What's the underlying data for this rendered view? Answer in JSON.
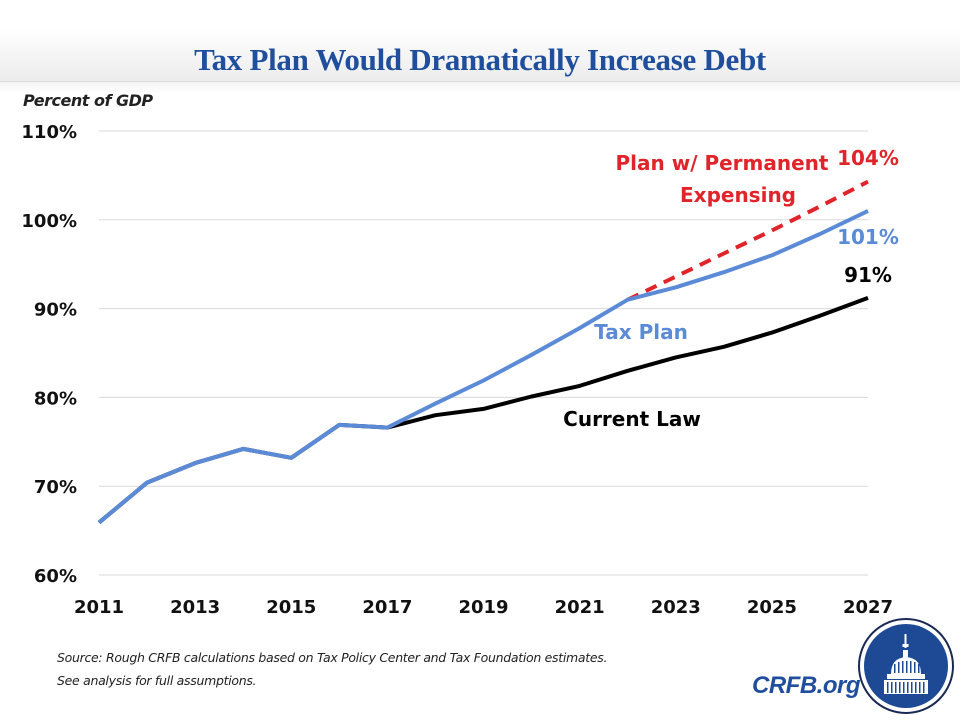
{
  "chart_data": {
    "type": "line",
    "title": "Tax Plan Would Dramatically Increase Debt",
    "ylabel": "Percent of GDP",
    "xlabel": "",
    "x": [
      2011,
      2012,
      2013,
      2014,
      2015,
      2016,
      2017,
      2018,
      2019,
      2020,
      2021,
      2022,
      2023,
      2024,
      2025,
      2026,
      2027
    ],
    "xlim": [
      2011,
      2027
    ],
    "ylim": [
      60,
      110
    ],
    "x_ticks": [
      "2011",
      "2013",
      "2015",
      "2017",
      "2019",
      "2021",
      "2023",
      "2025",
      "2027"
    ],
    "y_ticks": [
      "60%",
      "70%",
      "80%",
      "90%",
      "100%",
      "110%"
    ],
    "y_tick_values": [
      60,
      70,
      80,
      90,
      100,
      110
    ],
    "grid": "horizontal",
    "series": [
      {
        "name": "Current Law",
        "color": "#000000",
        "style": "solid",
        "x": [
          2011,
          2012,
          2013,
          2014,
          2015,
          2016,
          2017,
          2018,
          2019,
          2020,
          2021,
          2022,
          2023,
          2024,
          2025,
          2026,
          2027
        ],
        "values": [
          65.9,
          70.4,
          72.6,
          74.2,
          73.2,
          76.9,
          76.6,
          78.0,
          78.7,
          80.1,
          81.3,
          83.0,
          84.5,
          85.7,
          87.3,
          89.2,
          91.2
        ]
      },
      {
        "name": "Plan w/ Permanent Expensing",
        "color": "#e0242a",
        "style": "dashed",
        "x": [
          2022,
          2023,
          2024,
          2025,
          2026,
          2027
        ],
        "values": [
          91.0,
          93.6,
          96.2,
          98.8,
          101.5,
          104.3
        ]
      },
      {
        "name": "Tax Plan",
        "color": "#5b8ad6",
        "style": "solid",
        "x": [
          2011,
          2012,
          2013,
          2014,
          2015,
          2016,
          2017,
          2018,
          2019,
          2020,
          2021,
          2022,
          2023,
          2024,
          2025,
          2026,
          2027
        ],
        "values": [
          65.9,
          70.4,
          72.6,
          74.2,
          73.2,
          76.9,
          76.6,
          79.3,
          81.9,
          84.8,
          87.8,
          91.0,
          92.4,
          94.1,
          96.0,
          98.4,
          101.0
        ]
      }
    ],
    "annotations": [
      {
        "text": "Plan w/ Permanent",
        "color": "#e0242a"
      },
      {
        "text": "Expensing",
        "color": "#e0242a"
      },
      {
        "text": "104%",
        "color": "#e0242a"
      },
      {
        "text": "101%",
        "color": "#5b8ad6"
      },
      {
        "text": "91%",
        "color": "#000000"
      },
      {
        "text": "Tax Plan",
        "color": "#5b8ad6"
      },
      {
        "text": "Current Law",
        "color": "#000000"
      }
    ]
  },
  "footer": {
    "source_line1": "Source: Rough CRFB calculations based on Tax Policy Center and Tax Foundation estimates.",
    "source_line2": "See analysis for full assumptions.",
    "brand": "CRFB.org",
    "logo_icon": "capitol-dome-icon"
  },
  "colors": {
    "title": "#1f4e9c",
    "grid": "#d9d9d9"
  }
}
